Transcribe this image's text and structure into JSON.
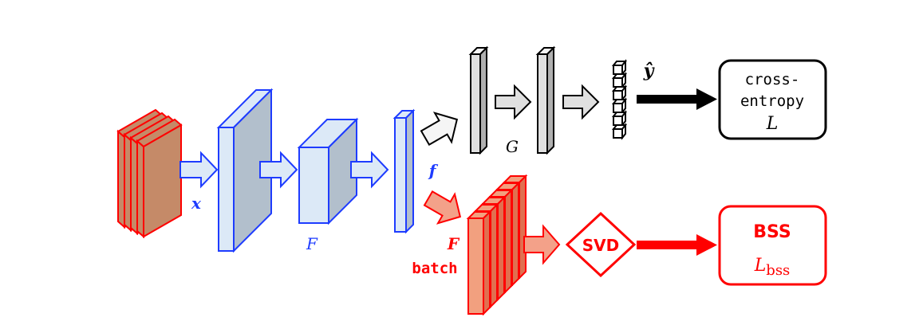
{
  "labels": {
    "x": "x",
    "F": "F",
    "f": "f",
    "G": "G",
    "y_hat": "ŷ",
    "F_batch_symbol": "F",
    "F_batch_word": "batch",
    "svd": "SVD",
    "ce_line1": "cross-",
    "ce_line2": "entropy",
    "ce_symbol": "L",
    "bss_title": "BSS",
    "bss_symbol": "L",
    "bss_subscript": "bss"
  },
  "colors": {
    "input_stroke": "#ff0000",
    "input_fill": "#c58a68",
    "blue_stroke": "#1e3cff",
    "blue_front": "#dce9f7",
    "blue_side": "#b2bfcc",
    "gray_stroke": "#000000",
    "gray_front": "#e0e0e0",
    "gray_light": "#f5f5f5",
    "red_arrow": "#ff0000",
    "orange_fill": "#f2a07f",
    "orange_arrow_fill": "#f3a189",
    "blue_label": "#1e3cff",
    "red_label": "#ff0000",
    "black": "#000000"
  }
}
